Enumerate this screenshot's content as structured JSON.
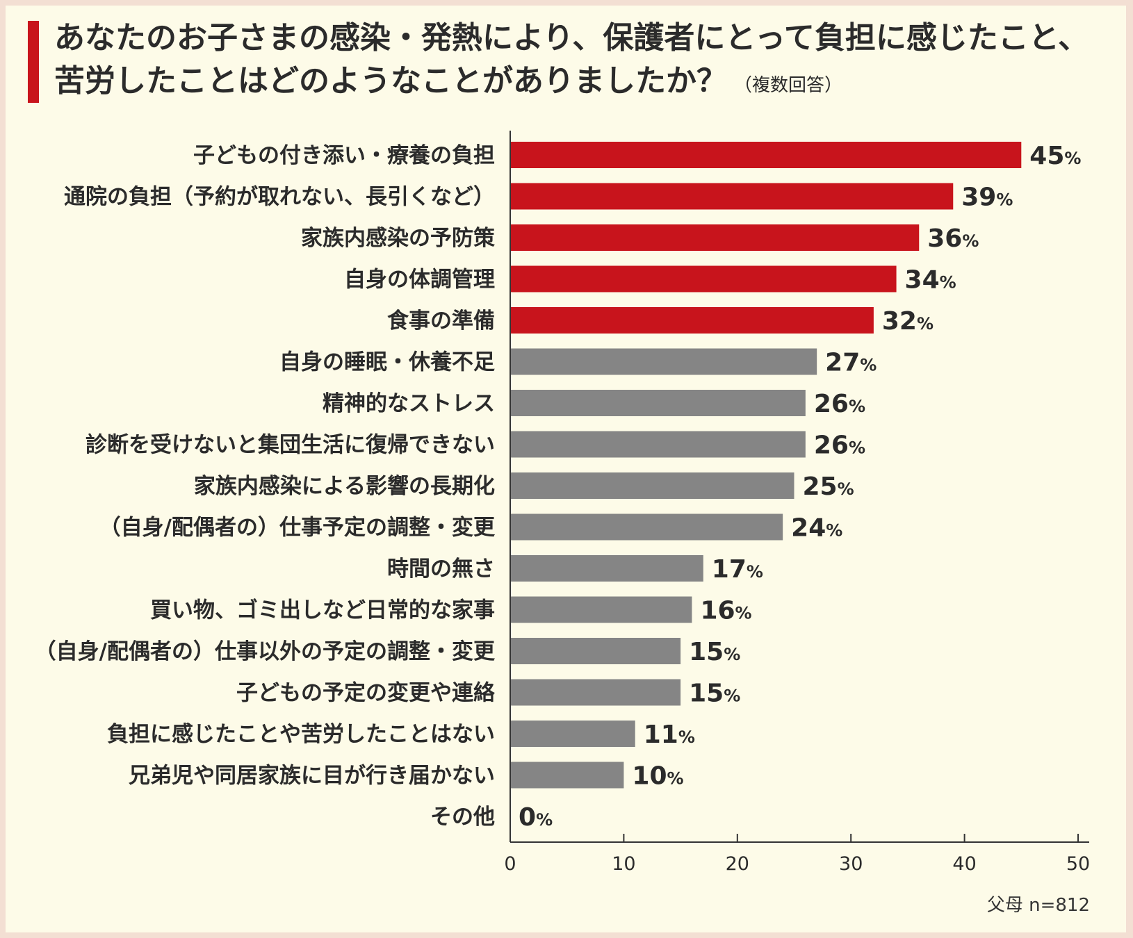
{
  "title_line1": "あなたのお子さまの感染・発熱により、保護者にとって負担に感じたこと、",
  "title_line2": "苦労したことはどのようなことがありましたか？",
  "title_note": "（複数回答）",
  "footer": "父母 n=812",
  "colors": {
    "highlight": "#c8141c",
    "normal": "#858585",
    "text": "#2b2b2b",
    "background": "#fdfbe8",
    "accent_bar": "#c8141c"
  },
  "chart_data": {
    "type": "bar",
    "orientation": "horizontal",
    "categories": [
      "子どもの付き添い・療養の負担",
      "通院の負担（予約が取れない、長引くなど）",
      "家族内感染の予防策",
      "自身の体調管理",
      "食事の準備",
      "自身の睡眠・休養不足",
      "精神的なストレス",
      "診断を受けないと集団生活に復帰できない",
      "家族内感染による影響の長期化",
      "（自身/配偶者の）仕事予定の調整・変更",
      "時間の無さ",
      "買い物、ゴミ出しなど日常的な家事",
      "（自身/配偶者の）仕事以外の予定の調整・変更",
      "子どもの予定の変更や連絡",
      "負担に感じたことや苦労したことはない",
      "兄弟児や同居家族に目が行き届かない",
      "その他"
    ],
    "values": [
      45,
      39,
      36,
      34,
      32,
      27,
      26,
      26,
      25,
      24,
      17,
      16,
      15,
      15,
      11,
      10,
      0
    ],
    "highlighted": [
      true,
      true,
      true,
      true,
      true,
      false,
      false,
      false,
      false,
      false,
      false,
      false,
      false,
      false,
      false,
      false,
      false
    ],
    "value_suffix": "%",
    "xlim": [
      0,
      50
    ],
    "xticks": [
      0,
      10,
      20,
      30,
      40,
      50
    ],
    "grid": false
  }
}
